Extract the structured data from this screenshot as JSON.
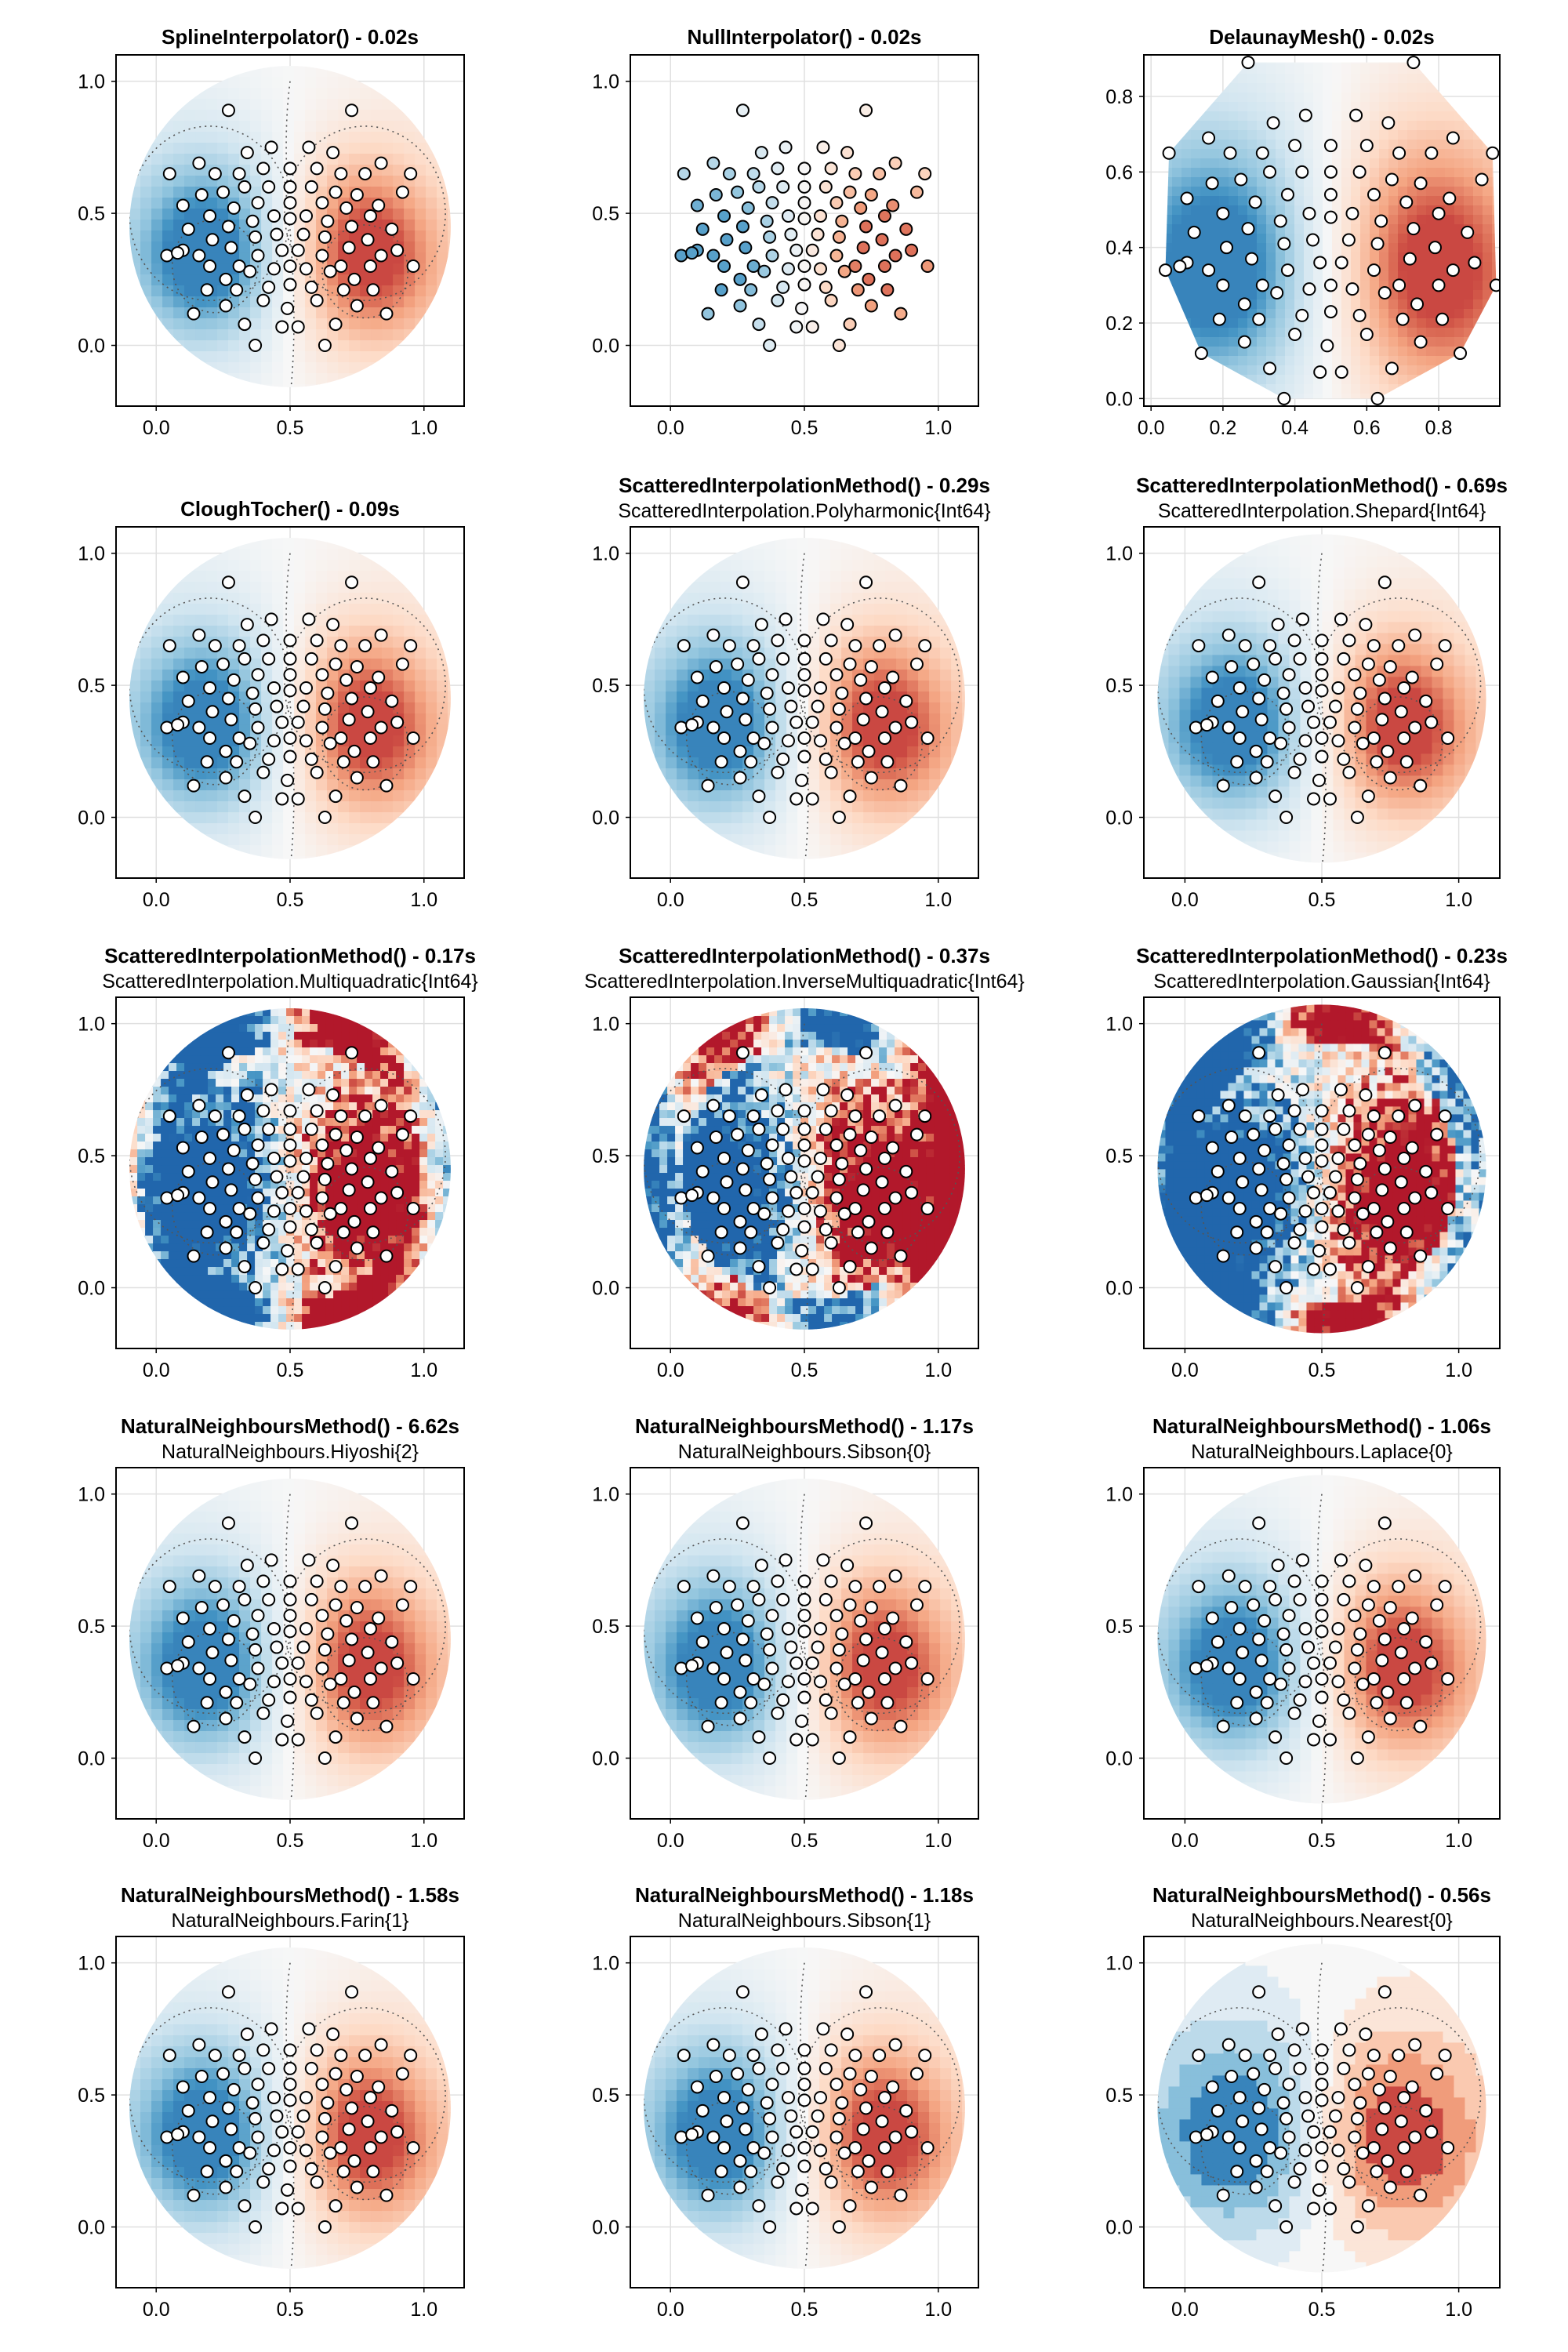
{
  "figure": {
    "rows": 5,
    "cols": 3
  },
  "colors": {
    "blue": "#2166ac",
    "red": "#b2182b",
    "neutral": "#f7f7f7",
    "frame": "#000000",
    "grid": "#e0e0e0",
    "contour": "#555555"
  },
  "chart_data": [
    {
      "type": "heatmap",
      "title": "SplineInterpolator() - 0.02s",
      "subtitle": "",
      "style": "smooth",
      "xlim": [
        -0.15,
        1.15
      ],
      "ylim": [
        -0.23,
        1.1
      ],
      "xticks": [
        "0.0",
        "0.5",
        "1.0"
      ],
      "yticks": [
        "0.0",
        "0.5",
        "1.0"
      ],
      "grid": true
    },
    {
      "type": "scatter",
      "title": "NullInterpolator() - 0.02s",
      "subtitle": "",
      "style": "points",
      "xlim": [
        -0.15,
        1.15
      ],
      "ylim": [
        -0.23,
        1.1
      ],
      "xticks": [
        "0.0",
        "0.5",
        "1.0"
      ],
      "yticks": [
        "0.0",
        "0.5",
        "1.0"
      ],
      "grid": true
    },
    {
      "type": "heatmap",
      "title": "DelaunayMesh() - 0.02s",
      "subtitle": "",
      "style": "mesh",
      "xlim": [
        -0.02,
        0.97
      ],
      "ylim": [
        -0.02,
        0.91
      ],
      "xticks": [
        "0.0",
        "0.2",
        "0.4",
        "0.6",
        "0.8"
      ],
      "yticks": [
        "0.0",
        "0.2",
        "0.4",
        "0.6",
        "0.8"
      ],
      "grid": true
    },
    {
      "type": "heatmap",
      "title": "CloughTocher() - 0.09s",
      "subtitle": "",
      "style": "smooth",
      "xlim": [
        -0.15,
        1.15
      ],
      "ylim": [
        -0.23,
        1.1
      ],
      "xticks": [
        "0.0",
        "0.5",
        "1.0"
      ],
      "yticks": [
        "0.0",
        "0.5",
        "1.0"
      ],
      "grid": true
    },
    {
      "type": "heatmap",
      "title": "ScatteredInterpolationMethod() - 0.29s",
      "subtitle": "ScatteredInterpolation.Polyharmonic{Int64}",
      "style": "smooth",
      "xlim": [
        -0.15,
        1.15
      ],
      "ylim": [
        -0.23,
        1.1
      ],
      "xticks": [
        "0.0",
        "0.5",
        "1.0"
      ],
      "yticks": [
        "0.0",
        "0.5",
        "1.0"
      ],
      "grid": true
    },
    {
      "type": "heatmap",
      "title": "ScatteredInterpolationMethod() - 0.69s",
      "subtitle": "ScatteredInterpolation.Shepard{Int64}",
      "style": "smooth",
      "xlim": [
        -0.15,
        1.15
      ],
      "ylim": [
        -0.23,
        1.1
      ],
      "xticks": [
        "0.0",
        "0.5",
        "1.0"
      ],
      "yticks": [
        "0.0",
        "0.5",
        "1.0"
      ],
      "grid": true
    },
    {
      "type": "heatmap",
      "title": "ScatteredInterpolationMethod() - 0.17s",
      "subtitle": "ScatteredInterpolation.Multiquadratic{Int64}",
      "style": "noisy",
      "xlim": [
        -0.15,
        1.15
      ],
      "ylim": [
        -0.23,
        1.1
      ],
      "xticks": [
        "0.0",
        "0.5",
        "1.0"
      ],
      "yticks": [
        "0.0",
        "0.5",
        "1.0"
      ],
      "grid": true
    },
    {
      "type": "heatmap",
      "title": "ScatteredInterpolationMethod() - 0.37s",
      "subtitle": "ScatteredInterpolation.InverseMultiquadratic{Int64}",
      "style": "noisy",
      "xlim": [
        -0.15,
        1.15
      ],
      "ylim": [
        -0.23,
        1.1
      ],
      "xticks": [
        "0.0",
        "0.5",
        "1.0"
      ],
      "yticks": [
        "0.0",
        "0.5",
        "1.0"
      ],
      "grid": true
    },
    {
      "type": "heatmap",
      "title": "ScatteredInterpolationMethod() - 0.23s",
      "subtitle": "ScatteredInterpolation.Gaussian{Int64}",
      "style": "noisy",
      "xlim": [
        -0.15,
        1.15
      ],
      "ylim": [
        -0.23,
        1.1
      ],
      "xticks": [
        "0.0",
        "0.5",
        "1.0"
      ],
      "yticks": [
        "0.0",
        "0.5",
        "1.0"
      ],
      "grid": true
    },
    {
      "type": "heatmap",
      "title": "NaturalNeighboursMethod() - 6.62s",
      "subtitle": "NaturalNeighbours.Hiyoshi{2}",
      "style": "smooth",
      "xlim": [
        -0.15,
        1.15
      ],
      "ylim": [
        -0.23,
        1.1
      ],
      "xticks": [
        "0.0",
        "0.5",
        "1.0"
      ],
      "yticks": [
        "0.0",
        "0.5",
        "1.0"
      ],
      "grid": true
    },
    {
      "type": "heatmap",
      "title": "NaturalNeighboursMethod() - 1.17s",
      "subtitle": "NaturalNeighbours.Sibson{0}",
      "style": "smooth",
      "xlim": [
        -0.15,
        1.15
      ],
      "ylim": [
        -0.23,
        1.1
      ],
      "xticks": [
        "0.0",
        "0.5",
        "1.0"
      ],
      "yticks": [
        "0.0",
        "0.5",
        "1.0"
      ],
      "grid": true
    },
    {
      "type": "heatmap",
      "title": "NaturalNeighboursMethod() - 1.06s",
      "subtitle": "NaturalNeighbours.Laplace{0}",
      "style": "smooth",
      "xlim": [
        -0.15,
        1.15
      ],
      "ylim": [
        -0.23,
        1.1
      ],
      "xticks": [
        "0.0",
        "0.5",
        "1.0"
      ],
      "yticks": [
        "0.0",
        "0.5",
        "1.0"
      ],
      "grid": true
    },
    {
      "type": "heatmap",
      "title": "NaturalNeighboursMethod() - 1.58s",
      "subtitle": "NaturalNeighbours.Farin{1}",
      "style": "smooth",
      "xlim": [
        -0.15,
        1.15
      ],
      "ylim": [
        -0.23,
        1.1
      ],
      "xticks": [
        "0.0",
        "0.5",
        "1.0"
      ],
      "yticks": [
        "0.0",
        "0.5",
        "1.0"
      ],
      "grid": true
    },
    {
      "type": "heatmap",
      "title": "NaturalNeighboursMethod() - 1.18s",
      "subtitle": "NaturalNeighbours.Sibson{1}",
      "style": "smooth",
      "xlim": [
        -0.15,
        1.15
      ],
      "ylim": [
        -0.23,
        1.1
      ],
      "xticks": [
        "0.0",
        "0.5",
        "1.0"
      ],
      "yticks": [
        "0.0",
        "0.5",
        "1.0"
      ],
      "grid": true
    },
    {
      "type": "heatmap",
      "title": "NaturalNeighboursMethod() - 0.56s",
      "subtitle": "NaturalNeighbours.Nearest{0}",
      "style": "nearest",
      "xlim": [
        -0.15,
        1.15
      ],
      "ylim": [
        -0.23,
        1.1
      ],
      "xticks": [
        "0.0",
        "0.5",
        "1.0"
      ],
      "yticks": [
        "0.0",
        "0.5",
        "1.0"
      ],
      "grid": true
    }
  ],
  "sensors": [
    [
      0.27,
      0.89
    ],
    [
      0.73,
      0.89
    ],
    [
      0.16,
      0.69
    ],
    [
      0.34,
      0.73
    ],
    [
      0.43,
      0.75
    ],
    [
      0.57,
      0.75
    ],
    [
      0.66,
      0.73
    ],
    [
      0.84,
      0.69
    ],
    [
      0.05,
      0.65
    ],
    [
      0.22,
      0.65
    ],
    [
      0.31,
      0.65
    ],
    [
      0.4,
      0.67
    ],
    [
      0.5,
      0.67
    ],
    [
      0.6,
      0.67
    ],
    [
      0.69,
      0.65
    ],
    [
      0.78,
      0.65
    ],
    [
      0.95,
      0.65
    ],
    [
      0.1,
      0.53
    ],
    [
      0.17,
      0.57
    ],
    [
      0.25,
      0.58
    ],
    [
      0.33,
      0.6
    ],
    [
      0.42,
      0.6
    ],
    [
      0.5,
      0.6
    ],
    [
      0.58,
      0.6
    ],
    [
      0.67,
      0.58
    ],
    [
      0.75,
      0.57
    ],
    [
      0.83,
      0.53
    ],
    [
      0.92,
      0.58
    ],
    [
      0.12,
      0.44
    ],
    [
      0.2,
      0.49
    ],
    [
      0.29,
      0.52
    ],
    [
      0.38,
      0.54
    ],
    [
      0.5,
      0.54
    ],
    [
      0.62,
      0.54
    ],
    [
      0.71,
      0.52
    ],
    [
      0.8,
      0.49
    ],
    [
      0.88,
      0.44
    ],
    [
      0.21,
      0.4
    ],
    [
      0.27,
      0.45
    ],
    [
      0.36,
      0.47
    ],
    [
      0.44,
      0.49
    ],
    [
      0.56,
      0.49
    ],
    [
      0.64,
      0.47
    ],
    [
      0.73,
      0.45
    ],
    [
      0.79,
      0.4
    ],
    [
      0.04,
      0.34
    ],
    [
      0.1,
      0.36
    ],
    [
      0.16,
      0.34
    ],
    [
      0.28,
      0.37
    ],
    [
      0.37,
      0.41
    ],
    [
      0.45,
      0.42
    ],
    [
      0.55,
      0.42
    ],
    [
      0.63,
      0.41
    ],
    [
      0.72,
      0.37
    ],
    [
      0.84,
      0.34
    ],
    [
      0.9,
      0.36
    ],
    [
      0.96,
      0.3
    ],
    [
      0.2,
      0.3
    ],
    [
      0.31,
      0.3
    ],
    [
      0.38,
      0.34
    ],
    [
      0.47,
      0.36
    ],
    [
      0.53,
      0.36
    ],
    [
      0.62,
      0.34
    ],
    [
      0.69,
      0.3
    ],
    [
      0.8,
      0.3
    ],
    [
      0.19,
      0.21
    ],
    [
      0.26,
      0.25
    ],
    [
      0.35,
      0.28
    ],
    [
      0.44,
      0.29
    ],
    [
      0.56,
      0.29
    ],
    [
      0.65,
      0.28
    ],
    [
      0.74,
      0.25
    ],
    [
      0.81,
      0.21
    ],
    [
      0.08,
      0.35
    ],
    [
      0.3,
      0.21
    ],
    [
      0.42,
      0.22
    ],
    [
      0.58,
      0.22
    ],
    [
      0.7,
      0.21
    ],
    [
      0.14,
      0.12
    ],
    [
      0.26,
      0.15
    ],
    [
      0.33,
      0.08
    ],
    [
      0.4,
      0.17
    ],
    [
      0.49,
      0.14
    ],
    [
      0.6,
      0.17
    ],
    [
      0.67,
      0.08
    ],
    [
      0.75,
      0.15
    ],
    [
      0.86,
      0.12
    ],
    [
      0.37,
      0.0
    ],
    [
      0.47,
      0.07
    ],
    [
      0.53,
      0.07
    ],
    [
      0.63,
      0.0
    ],
    [
      0.5,
      0.23
    ],
    [
      0.5,
      0.3
    ],
    [
      0.5,
      0.48
    ]
  ]
}
